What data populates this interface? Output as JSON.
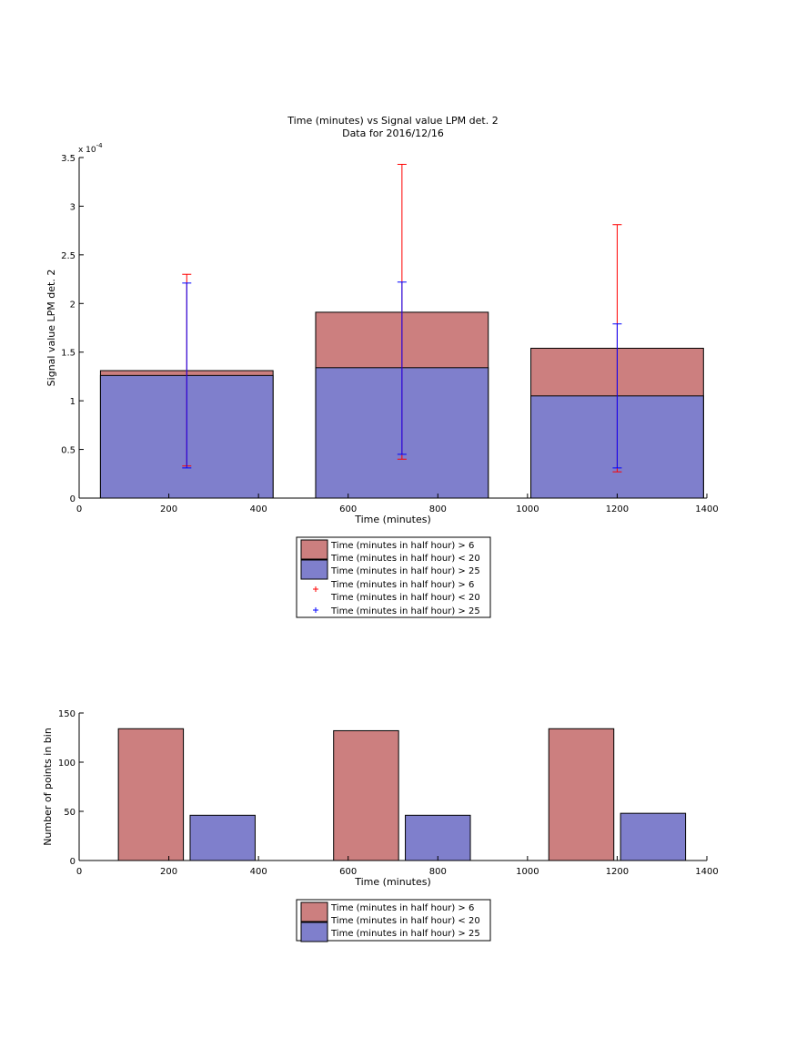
{
  "colors": {
    "red_fill": "#cc7f7f",
    "blue_fill": "#7f7fcc",
    "red_err": "#ff0000",
    "blue_err": "#0000ff"
  },
  "chart_data": [
    {
      "type": "bar",
      "title": "Time (minutes) vs Signal value LPM det. 2",
      "subtitle": "Data for 2016/12/16",
      "xlabel": "Time (minutes)",
      "ylabel": "Signal value LPM det. 2",
      "y_exponent_label": "x 10",
      "y_exponent_power": "-4",
      "xlim": [
        0,
        1400
      ],
      "ylim": [
        0,
        3.5
      ],
      "y_scale": 0.0001,
      "x_ticks": [
        "0",
        "200",
        "400",
        "600",
        "800",
        "1000",
        "1200",
        "1400"
      ],
      "y_ticks": [
        "0",
        "0.5",
        "1",
        "1.5",
        "2",
        "2.5",
        "3",
        "3.5"
      ],
      "grid": false,
      "legend_placement": "below axes",
      "series": [
        {
          "name": "Time (minutes in half hour) > 6 Time (minutes in half hour) < 20",
          "style": "bar",
          "color": "red",
          "x": [
            240,
            720,
            1200
          ],
          "values": [
            1.31,
            1.91,
            1.54
          ],
          "bar_width": 385
        },
        {
          "name": "Time (minutes in half hour) > 25",
          "style": "bar",
          "color": "blue",
          "x": [
            240,
            720,
            1200
          ],
          "values": [
            1.26,
            1.34,
            1.05
          ],
          "bar_width": 385
        },
        {
          "name": "Time (minutes in half hour) > 6 Time (minutes in half hour) < 20",
          "style": "errorbar",
          "color": "red",
          "x": [
            240,
            720,
            1200
          ],
          "low": [
            0.33,
            0.4,
            0.27
          ],
          "high": [
            2.3,
            3.43,
            2.81
          ]
        },
        {
          "name": "Time (minutes in half hour) > 25",
          "style": "errorbar",
          "color": "blue",
          "x": [
            240,
            720,
            1200
          ],
          "low": [
            0.31,
            0.45,
            0.31
          ],
          "high": [
            2.21,
            2.22,
            1.79
          ]
        }
      ],
      "legend": [
        {
          "text": "Time (minutes in half hour) > 6",
          "marker": "red_box"
        },
        {
          "text": "Time (minutes in half hour) < 20",
          "marker": "none"
        },
        {
          "text": "Time (minutes in half hour) > 25",
          "marker": "blue_box"
        },
        {
          "text": "Time (minutes in half hour) > 6",
          "marker": "none"
        },
        {
          "text": "Time (minutes in half hour) < 20",
          "marker": "red_plus"
        },
        {
          "text": "Time (minutes in half hour) > 25",
          "marker": "blue_plus"
        }
      ]
    },
    {
      "type": "bar",
      "title": "",
      "xlabel": "Time (minutes)",
      "ylabel": "Number of points in bin",
      "xlim": [
        0,
        1400
      ],
      "ylim": [
        0,
        150
      ],
      "x_ticks": [
        "0",
        "200",
        "400",
        "600",
        "800",
        "1000",
        "1200",
        "1400"
      ],
      "y_ticks": [
        "0",
        "50",
        "100",
        "150"
      ],
      "grid": false,
      "legend_placement": "below axes",
      "series": [
        {
          "name": "Time (minutes in half hour) > 6 Time (minutes in half hour) < 20",
          "color": "red",
          "x": [
            160,
            640,
            1120
          ],
          "values": [
            134,
            132,
            134
          ],
          "bar_width": 145
        },
        {
          "name": "Time (minutes in half hour) > 25",
          "color": "blue",
          "x": [
            320,
            800,
            1280
          ],
          "values": [
            46,
            46,
            48
          ],
          "bar_width": 145
        }
      ],
      "legend": [
        {
          "text": "Time (minutes in half hour) > 6",
          "marker": "red_box"
        },
        {
          "text": "Time (minutes in half hour) < 20",
          "marker": "none"
        },
        {
          "text": "Time (minutes in half hour) > 25",
          "marker": "blue_box"
        }
      ]
    }
  ]
}
